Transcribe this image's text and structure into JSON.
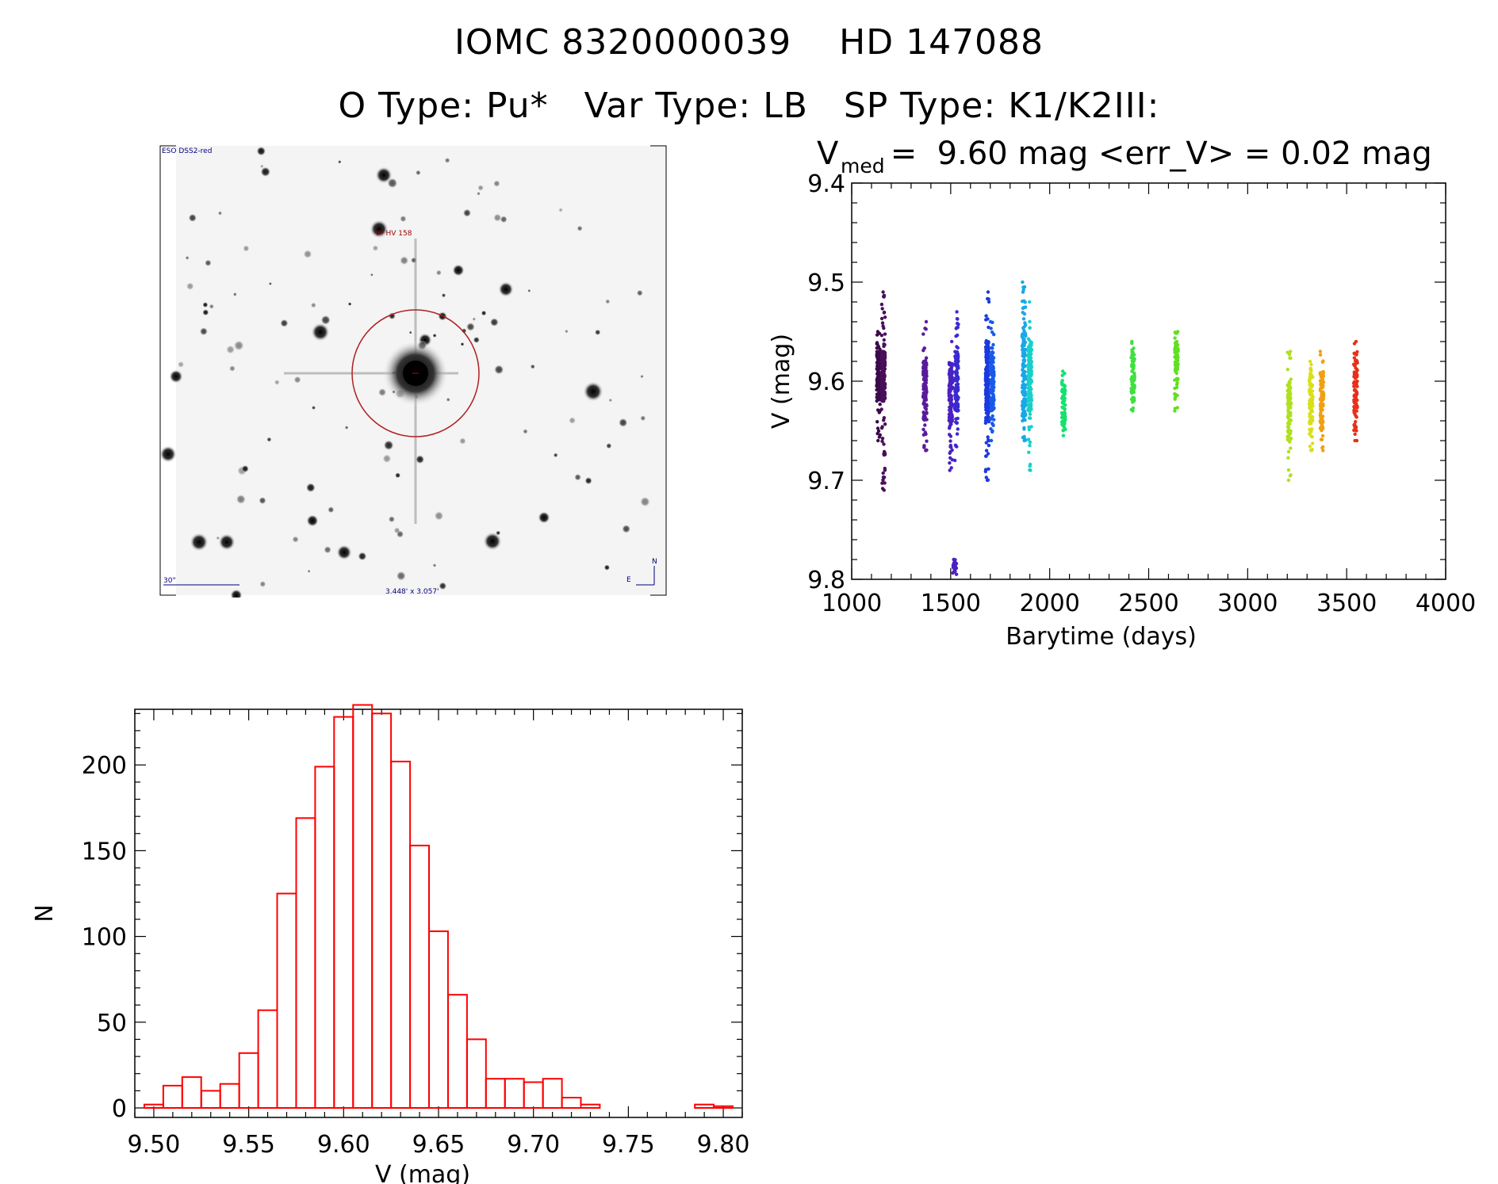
{
  "header": {
    "line1": "IOMC 8320000039    HD 147088",
    "line2": "O Type: Pu*   Var Type: LB   SP Type: K1/K2III:"
  },
  "sky_image": {
    "survey_label": "ESO DSS2-red",
    "object_label": "V* HV 158",
    "scale_label": "30\"",
    "fov_label": "3.448' x 3.057'",
    "north_label": "N",
    "east_label": "E"
  },
  "lightcurve": {
    "header_v": "V",
    "header_sub": "med",
    "header_rest": " =  9.60 mag <err_V> = 0.02 mag"
  },
  "chart_data": [
    {
      "type": "scatter",
      "title": "V_med = 9.60 mag <err_V> = 0.02 mag",
      "xlabel": "Barytime (days)",
      "ylabel": "V (mag)",
      "xlim": [
        1000,
        4000
      ],
      "ylim": [
        9.8,
        9.4
      ],
      "y_inverted": true,
      "xticks": [
        1000,
        1500,
        2000,
        2500,
        3000,
        3500,
        4000
      ],
      "yticks": [
        9.4,
        9.5,
        9.6,
        9.7,
        9.8
      ],
      "clusters": [
        {
          "x": 1135,
          "y_range": [
            9.55,
            9.66
          ],
          "core": [
            9.57,
            9.62
          ],
          "color": "#3a0a4a"
        },
        {
          "x": 1160,
          "y_range": [
            9.51,
            9.71
          ],
          "core": [
            9.57,
            9.62
          ],
          "color": "#4a0f5a"
        },
        {
          "x": 1370,
          "y_range": [
            9.54,
            9.67
          ],
          "core": [
            9.58,
            9.64
          ],
          "color": "#5a1a9a"
        },
        {
          "x": 1500,
          "y_range": [
            9.56,
            9.69
          ],
          "core": [
            9.58,
            9.64
          ],
          "color": "#4a22c0"
        },
        {
          "x": 1520,
          "y_range": [
            9.78,
            9.795
          ],
          "core": [
            9.78,
            9.795
          ],
          "color": "#4a22c0"
        },
        {
          "x": 1530,
          "y_range": [
            9.53,
            9.68
          ],
          "core": [
            9.57,
            9.63
          ],
          "color": "#3a2ad0"
        },
        {
          "x": 1685,
          "y_range": [
            9.51,
            9.7
          ],
          "core": [
            9.56,
            9.64
          ],
          "color": "#1a3ae0"
        },
        {
          "x": 1710,
          "y_range": [
            9.54,
            9.66
          ],
          "core": [
            9.57,
            9.63
          ],
          "color": "#1a5ae8"
        },
        {
          "x": 1870,
          "y_range": [
            9.5,
            9.66
          ],
          "core": [
            9.55,
            9.64
          ],
          "color": "#18a8e8"
        },
        {
          "x": 1900,
          "y_range": [
            9.52,
            9.69
          ],
          "core": [
            9.56,
            9.63
          ],
          "color": "#18d0c8"
        },
        {
          "x": 2070,
          "y_range": [
            9.59,
            9.655
          ],
          "core": [
            9.6,
            9.65
          ],
          "color": "#18e070"
        },
        {
          "x": 2420,
          "y_range": [
            9.56,
            9.63
          ],
          "core": [
            9.57,
            9.62
          ],
          "color": "#40e040"
        },
        {
          "x": 2640,
          "y_range": [
            9.55,
            9.63
          ],
          "core": [
            9.56,
            9.59
          ],
          "color": "#60e020"
        },
        {
          "x": 3210,
          "y_range": [
            9.57,
            9.7
          ],
          "core": [
            9.6,
            9.66
          ],
          "color": "#b0e020"
        },
        {
          "x": 3320,
          "y_range": [
            9.58,
            9.67
          ],
          "core": [
            9.59,
            9.65
          ],
          "color": "#d8e018"
        },
        {
          "x": 3375,
          "y_range": [
            9.57,
            9.67
          ],
          "core": [
            9.59,
            9.65
          ],
          "color": "#f0a010"
        },
        {
          "x": 3545,
          "y_range": [
            9.56,
            9.66
          ],
          "core": [
            9.57,
            9.65
          ],
          "color": "#e83018"
        }
      ]
    },
    {
      "type": "bar",
      "histogram": true,
      "xlabel": "V (mag)",
      "ylabel": "N",
      "xlim": [
        9.49,
        9.81
      ],
      "ylim": [
        0,
        235
      ],
      "xticks": [
        9.5,
        9.55,
        9.6,
        9.65,
        9.7,
        9.75,
        9.8
      ],
      "yticks": [
        0,
        50,
        100,
        150,
        200
      ],
      "bin_width": 0.01,
      "bin_start": 9.495,
      "counts": [
        2,
        13,
        18,
        10,
        14,
        32,
        57,
        125,
        169,
        199,
        228,
        235,
        230,
        202,
        153,
        103,
        66,
        40,
        17,
        17,
        15,
        17,
        6,
        2,
        0,
        0,
        0,
        0,
        0,
        2,
        1
      ],
      "color": "#ff0000"
    }
  ]
}
